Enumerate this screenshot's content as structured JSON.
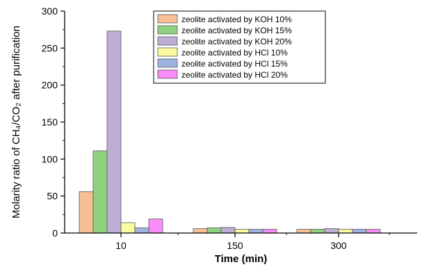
{
  "chart_data": {
    "type": "bar",
    "categories": [
      "10",
      "150",
      "300"
    ],
    "series": [
      {
        "name": "zeolite activated by  KOH 10%",
        "color": "#f8bf94",
        "values": [
          56,
          6,
          5
        ]
      },
      {
        "name": "zeolite activated by  KOH 15%",
        "color": "#8fd17f",
        "values": [
          111,
          7,
          5
        ]
      },
      {
        "name": "zeolite activated by KOH 20%",
        "color": "#bfaed4",
        "values": [
          273,
          7.5,
          6
        ]
      },
      {
        "name": "zeolite activated by  HCl 10%",
        "color": "#fbfba0",
        "values": [
          14,
          5,
          5
        ]
      },
      {
        "name": "zeolite activated by  HCl 15%",
        "color": "#9fb5e1",
        "values": [
          7,
          5,
          5
        ]
      },
      {
        "name": "zeolite activated by  HCl 20%",
        "color": "#f88cf8",
        "values": [
          19,
          5,
          5
        ]
      }
    ],
    "xlabel": "Time (min)",
    "ylabel": "Molarity ratio of CH₄/CO₂ after purification",
    "ylim": [
      0,
      300
    ],
    "yticks": [
      0,
      50,
      100,
      150,
      200,
      250,
      300
    ],
    "grid": false,
    "legend_position": "top-right"
  }
}
